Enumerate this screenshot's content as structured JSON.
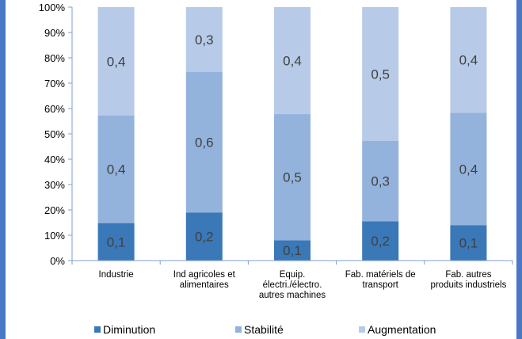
{
  "chart_data": {
    "type": "bar",
    "stacked": true,
    "percent": true,
    "categories": [
      [
        "Industrie"
      ],
      [
        "Ind agricoles et",
        "alimentaires"
      ],
      [
        "Equip.",
        "électri./électro.",
        "autres machines"
      ],
      [
        "Fab. matériels de",
        "transport"
      ],
      [
        "Fab. autres",
        "produits industriels"
      ]
    ],
    "series": [
      {
        "name": "Diminution",
        "color": "#3a78b8",
        "values": [
          0.148,
          0.19,
          0.08,
          0.155,
          0.14
        ],
        "labels": [
          "0,1",
          "0,2",
          "0,1",
          "0,2",
          "0,1"
        ]
      },
      {
        "name": "Stabilité",
        "color": "#93b3dd",
        "values": [
          0.425,
          0.555,
          0.498,
          0.318,
          0.443
        ],
        "labels": [
          "0,4",
          "0,6",
          "0,5",
          "0,3",
          "0,4"
        ]
      },
      {
        "name": "Augmentation",
        "color": "#b7cbe8",
        "values": [
          0.427,
          0.255,
          0.422,
          0.527,
          0.417
        ],
        "labels": [
          "0,4",
          "0,3",
          "0,4",
          "0,5",
          "0,4"
        ]
      }
    ],
    "yticks": [
      "0%",
      "10%",
      "20%",
      "30%",
      "40%",
      "50%",
      "60%",
      "70%",
      "80%",
      "90%",
      "100%"
    ],
    "ylim": [
      0,
      1
    ],
    "legend_position": "bottom",
    "grid": false
  }
}
